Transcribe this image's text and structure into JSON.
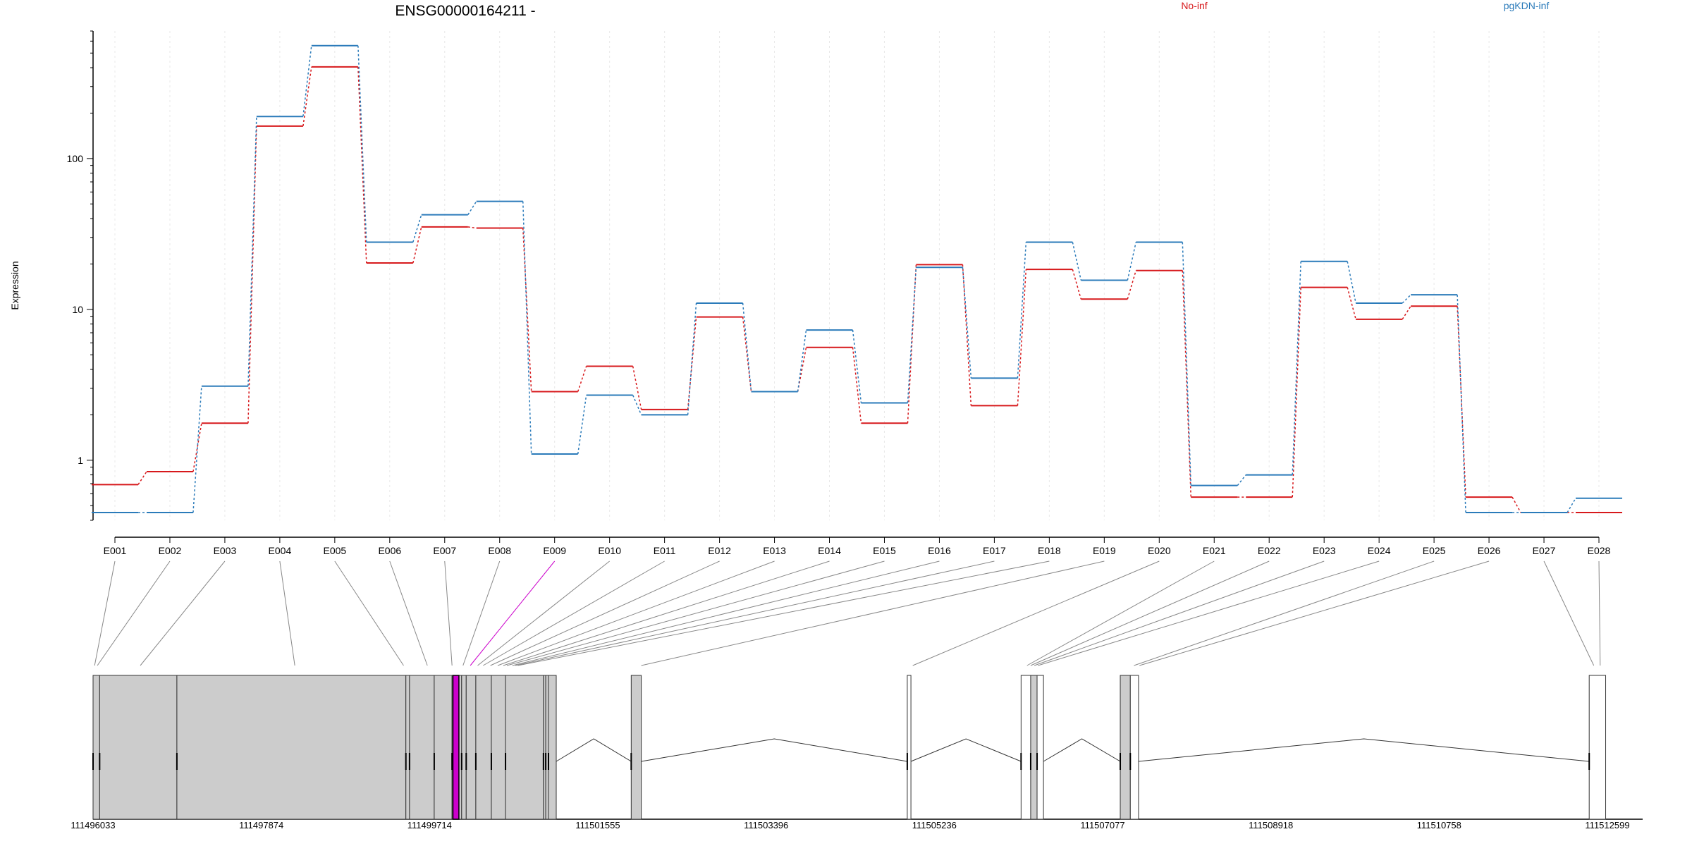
{
  "title": "ENSG00000164211 -",
  "colors": {
    "no_inf": "#d7191c",
    "pgkdn_inf": "#2b7bba",
    "highlight": "#cc00cc",
    "exon_fill": "#cccccc"
  },
  "chart_data": {
    "type": "line",
    "title": "ENSG00000164211 -",
    "ylabel": "Expression",
    "xlabel": "",
    "yscale": "log",
    "ylim": [
      0.4,
      700
    ],
    "yticks": [
      "1",
      "10",
      "100"
    ],
    "legend_placement": "top",
    "categories": [
      "E001",
      "E002",
      "E003",
      "E004",
      "E005",
      "E006",
      "E007",
      "E008",
      "E009",
      "E010",
      "E011",
      "E012",
      "E013",
      "E014",
      "E015",
      "E016",
      "E017",
      "E018",
      "E019",
      "E020",
      "E021",
      "E022",
      "E023",
      "E024",
      "E025",
      "E026",
      "E027",
      "E028"
    ],
    "highlighted_exon": "E009",
    "series": [
      {
        "name": "No-inf",
        "color": "#d7191c",
        "values": [
          0.69,
          0.84,
          1.76,
          164,
          405,
          20.3,
          35.2,
          34.6,
          2.85,
          4.2,
          2.17,
          8.9,
          2.85,
          5.6,
          1.76,
          19.8,
          2.3,
          18.4,
          11.7,
          18.1,
          0.57,
          0.57,
          14.0,
          8.6,
          10.5,
          0.57,
          0.45,
          0.45
        ]
      },
      {
        "name": "pgKDN-inf",
        "color": "#2b7bba",
        "values": [
          0.45,
          0.45,
          3.1,
          190,
          560,
          27.9,
          42.4,
          52.0,
          1.1,
          2.7,
          2.0,
          11.0,
          2.85,
          7.3,
          2.4,
          19.0,
          3.5,
          27.9,
          15.6,
          27.9,
          0.68,
          0.8,
          20.8,
          11.0,
          12.5,
          0.45,
          0.45,
          0.56
        ]
      }
    ]
  },
  "gene_model": {
    "genomic_ticks": [
      "111496033",
      "111497874",
      "111499714",
      "111501555",
      "111503396",
      "111505236",
      "111507077",
      "111508918",
      "111510758",
      "111512599"
    ],
    "tick_positions": [
      111496033,
      111497874,
      111499714,
      111501555,
      111503396,
      111505236,
      111507077,
      111508918,
      111510758,
      111512599
    ],
    "exons": [
      {
        "start": 111496033,
        "end": 111496105
      },
      {
        "start": 111496105,
        "end": 111496950
      },
      {
        "start": 111496950,
        "end": 111499455
      },
      {
        "start": 111499455,
        "end": 111499495
      },
      {
        "start": 111499495,
        "end": 111499765
      },
      {
        "start": 111499765,
        "end": 111499960
      },
      {
        "start": 111499960,
        "end": 111500065
      },
      {
        "start": 111500065,
        "end": 111500115
      },
      {
        "start": 111500115,
        "end": 111500220
      },
      {
        "start": 111500220,
        "end": 111500390
      },
      {
        "start": 111500390,
        "end": 111500545
      },
      {
        "start": 111500545,
        "end": 111500960
      },
      {
        "start": 111500960,
        "end": 111500985
      },
      {
        "start": 111500985,
        "end": 111501015
      },
      {
        "start": 111501015,
        "end": 111501100
      },
      {
        "start": 111501920,
        "end": 111502030
      },
      {
        "start": 111504940,
        "end": 111504980
      },
      {
        "start": 111506185,
        "end": 111506290
      },
      {
        "start": 111506290,
        "end": 111506360
      },
      {
        "start": 111506360,
        "end": 111506430
      },
      {
        "start": 111507270,
        "end": 111507380
      },
      {
        "start": 111507380,
        "end": 111507470
      },
      {
        "start": 111512400,
        "end": 111512580
      }
    ],
    "highlight_exon": {
      "start": 111499970,
      "end": 111500035
    },
    "introns": [
      {
        "start": 111501100,
        "end": 111501920
      },
      {
        "start": 111502030,
        "end": 111504940
      },
      {
        "start": 111504980,
        "end": 111506185
      },
      {
        "start": 111506430,
        "end": 111507270
      },
      {
        "start": 111507470,
        "end": 111512400
      }
    ],
    "exon_map_positions": [
      111496050,
      111496080,
      111496550,
      111498240,
      111499430,
      111499690,
      111499960,
      111500080,
      111500160,
      111500240,
      111500300,
      111500380,
      111500460,
      111500520,
      111500560,
      111500620,
      111500650,
      111500680,
      111502030,
      111505000,
      111506250,
      111506290,
      111506330,
      111506370,
      111507420,
      111507480,
      111512450,
      111512520
    ]
  }
}
